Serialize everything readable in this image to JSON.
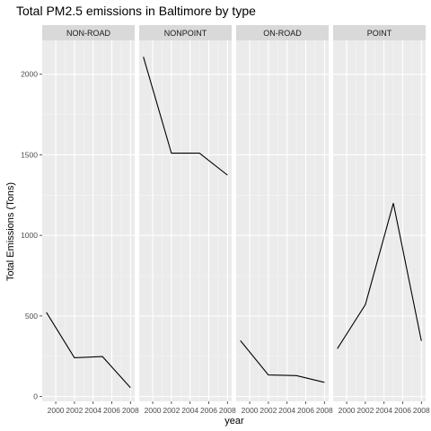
{
  "chart_data": {
    "type": "line",
    "title": "Total PM2.5 emissions in Baltimore by type",
    "xlabel": "year",
    "ylabel": "Total Emissions (Tons)",
    "x": [
      1999,
      2002,
      2005,
      2008
    ],
    "xticks": [
      2000,
      2002,
      2004,
      2006,
      2008
    ],
    "yticks": [
      0,
      500,
      1000,
      1500,
      2000
    ],
    "xlim": [
      1998.55,
      2008.45
    ],
    "ylim": [
      -30,
      2210
    ],
    "grid": true,
    "facets": [
      {
        "label": "NON-ROAD",
        "values": [
          522,
          241,
          248,
          55
        ]
      },
      {
        "label": "NONPOINT",
        "values": [
          2108,
          1510,
          1510,
          1374
        ]
      },
      {
        "label": "ON-ROAD",
        "values": [
          347,
          134,
          130,
          88
        ]
      },
      {
        "label": "POINT",
        "values": [
          297,
          570,
          1200,
          345
        ]
      }
    ]
  }
}
